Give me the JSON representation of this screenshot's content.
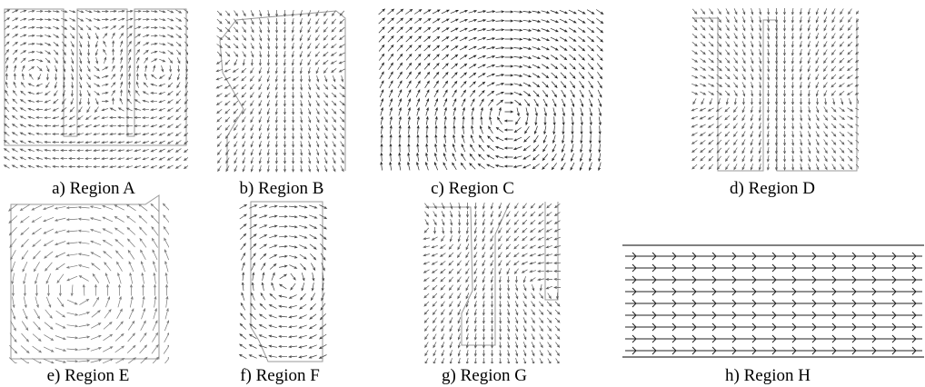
{
  "panels": [
    {
      "caption": "a) Region A"
    },
    {
      "caption": "b) Region B"
    },
    {
      "caption": "c) Region C"
    },
    {
      "caption": "d) Region D"
    },
    {
      "caption": "e) Region E"
    },
    {
      "caption": "f) Region F"
    },
    {
      "caption": "g) Region G"
    },
    {
      "caption": "h) Region H"
    }
  ]
}
